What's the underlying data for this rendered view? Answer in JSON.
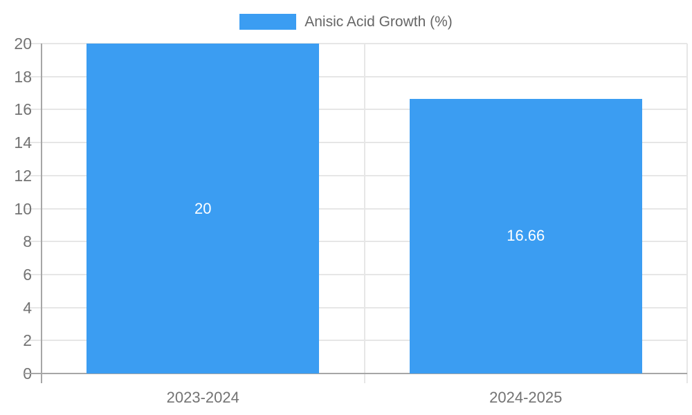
{
  "chart_data": {
    "type": "bar",
    "categories": [
      "2023-2024",
      "2024-2025"
    ],
    "series": [
      {
        "name": "Anisic Acid Growth (%)",
        "values": [
          20,
          16.66
        ]
      }
    ],
    "value_labels": [
      "20",
      "16.66"
    ],
    "title": "",
    "xlabel": "",
    "ylabel": "",
    "ylim": [
      0,
      20
    ],
    "yticks": [
      0,
      2,
      4,
      6,
      8,
      10,
      12,
      14,
      16,
      18,
      20
    ],
    "grid": true,
    "legend_position": "top",
    "colors": {
      "bar": "#3b9df2",
      "bar_value_text": "#ffffff",
      "axis_line": "#a6a6a6",
      "gridline": "#e6e6e6",
      "tick_text": "#737373",
      "legend_text": "#666666"
    }
  }
}
